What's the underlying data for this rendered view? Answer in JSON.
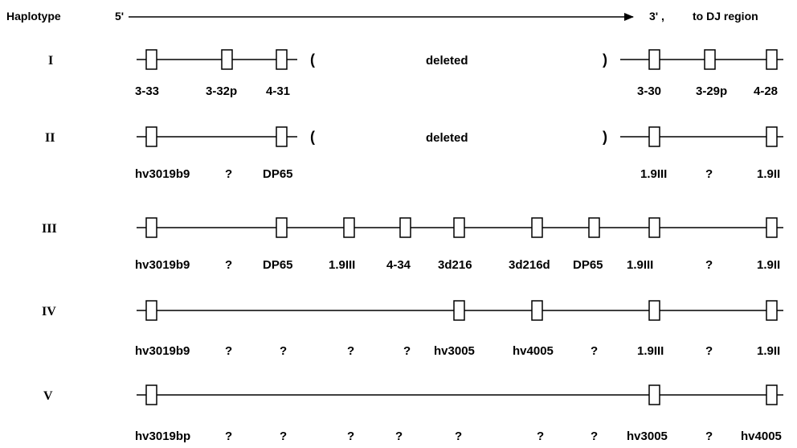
{
  "header": {
    "label": "Haplotype",
    "five_prime": "5'",
    "three_prime": "3' ,",
    "direction": "to DJ region"
  },
  "haplotypes": [
    {
      "name": "I",
      "genes": [
        "3-33",
        "3-32p",
        "4-31",
        "3-30",
        "3-29p",
        "4-28"
      ],
      "deleted_text": "deleted",
      "open_paren": "(",
      "close_paren": ")"
    },
    {
      "name": "II",
      "genes": [
        "hv3019b9",
        "?",
        "DP65",
        "1.9III",
        "?",
        "1.9II"
      ],
      "deleted_text": "deleted",
      "open_paren": "(",
      "close_paren": ")"
    },
    {
      "name": "III",
      "genes": [
        "hv3019b9",
        "?",
        "DP65",
        "1.9III",
        "4-34",
        "3d216",
        "3d216d",
        "DP65",
        "1.9III",
        "?",
        "1.9II"
      ]
    },
    {
      "name": "IV",
      "genes": [
        "hv3019b9",
        "?",
        "?",
        "?",
        "?",
        "hv3005",
        "hv4005",
        "?",
        "1.9III",
        "?",
        "1.9II"
      ]
    },
    {
      "name": "V",
      "genes": [
        "hv3019bp",
        "?",
        "?",
        "?",
        "?",
        "?",
        "?",
        "?",
        "hv3005",
        "?",
        "hv4005"
      ]
    }
  ]
}
